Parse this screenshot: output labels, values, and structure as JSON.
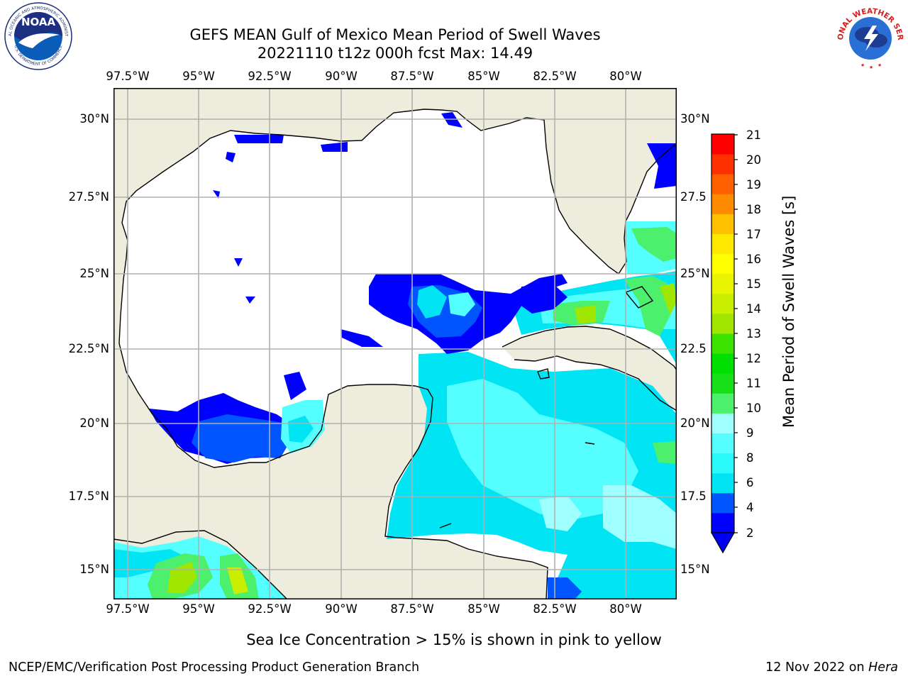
{
  "title": {
    "line1": "GEFS MEAN Gulf of Mexico Mean Period of Swell Waves",
    "line2": "20221110 t12z 000h fcst   Max: 14.49"
  },
  "map": {
    "lon_ticks": [
      "97.5°W",
      "95°W",
      "92.5°W",
      "90°W",
      "87.5°W",
      "85°W",
      "82.5°W",
      "80°W"
    ],
    "lat_ticks_left": [
      "30°N",
      "27.5°N",
      "25°N",
      "22.5°N",
      "20°N",
      "17.5°N",
      "15°N"
    ],
    "lat_ticks_right": [
      "30°N",
      "27.5",
      "25°N",
      "22.5",
      "20°N",
      "17.5",
      "15°N"
    ],
    "colors": {
      "land": "#eeecdc",
      "ocean_nodata": "#ffffff",
      "grid": "#b0b0b0",
      "coast": "#000000"
    }
  },
  "colorbar": {
    "label": "Mean Period of Swell Waves [s]",
    "ticks": [
      "21",
      "20",
      "19",
      "18",
      "17",
      "16",
      "15",
      "14",
      "13",
      "12",
      "11",
      "10",
      "9",
      "8",
      "6",
      "4",
      "2"
    ],
    "colors_low_to_high": [
      "#0000ff",
      "#0055ff",
      "#00e4f4",
      "#2afafa",
      "#55ffff",
      "#a0ffff",
      "#4cf06c",
      "#18e018",
      "#00e000",
      "#3ee200",
      "#a0e600",
      "#caee00",
      "#e8f400",
      "#ffff00",
      "#ffe800",
      "#ffc000",
      "#ff8c00",
      "#ff6000",
      "#ff3000",
      "#ff0000"
    ],
    "extend_under_color": "#0000ee"
  },
  "footnote": "Sea Ice Concentration > 15% is shown in pink to yellow",
  "footer": {
    "left": "NCEP/EMC/Verification Post Processing Product Generation Branch",
    "right_prefix": "12 Nov 2022 on ",
    "right_system": "Hera"
  },
  "logos": {
    "noaa": "NOAA",
    "noaa_ring": "NATIONAL OCEANIC AND ATMOSPHERIC ADMINISTRATION",
    "noaa_dept": "U.S. DEPARTMENT OF COMMERCE",
    "nws_ring": "NATIONAL WEATHER SERVICE"
  }
}
